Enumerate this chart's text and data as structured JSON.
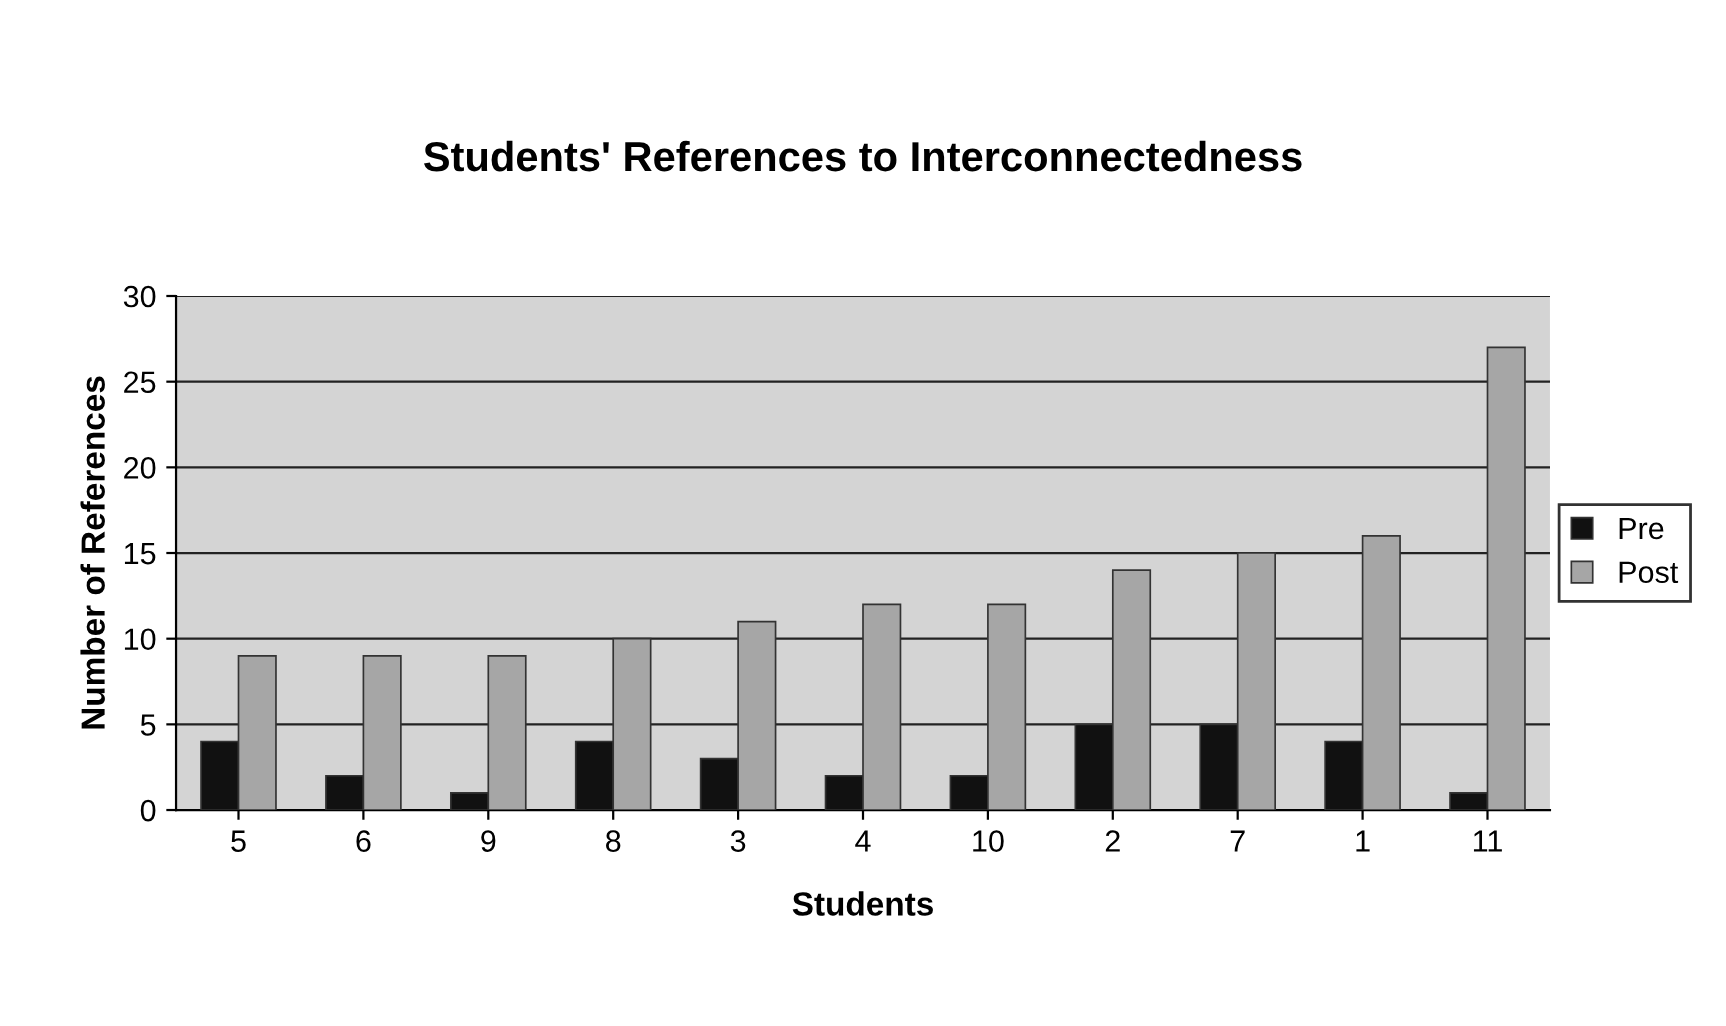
{
  "chart_data": {
    "type": "bar",
    "title": "Students' References to Interconnectedness",
    "xlabel": "Students",
    "ylabel": "Number of References",
    "categories": [
      "5",
      "6",
      "9",
      "8",
      "3",
      "4",
      "10",
      "2",
      "7",
      "1",
      "11"
    ],
    "series": [
      {
        "name": "Pre",
        "color": "#111111",
        "values": [
          4,
          2,
          1,
          4,
          3,
          2,
          2,
          5,
          5,
          4,
          1
        ]
      },
      {
        "name": "Post",
        "color": "#a6a6a6",
        "values": [
          9,
          9,
          9,
          10,
          11,
          12,
          12,
          14,
          15,
          16,
          27
        ]
      }
    ],
    "ylim": [
      0,
      30
    ],
    "yticks": [
      0,
      5,
      10,
      15,
      20,
      25,
      30
    ],
    "grid": "y",
    "legend": "right"
  }
}
